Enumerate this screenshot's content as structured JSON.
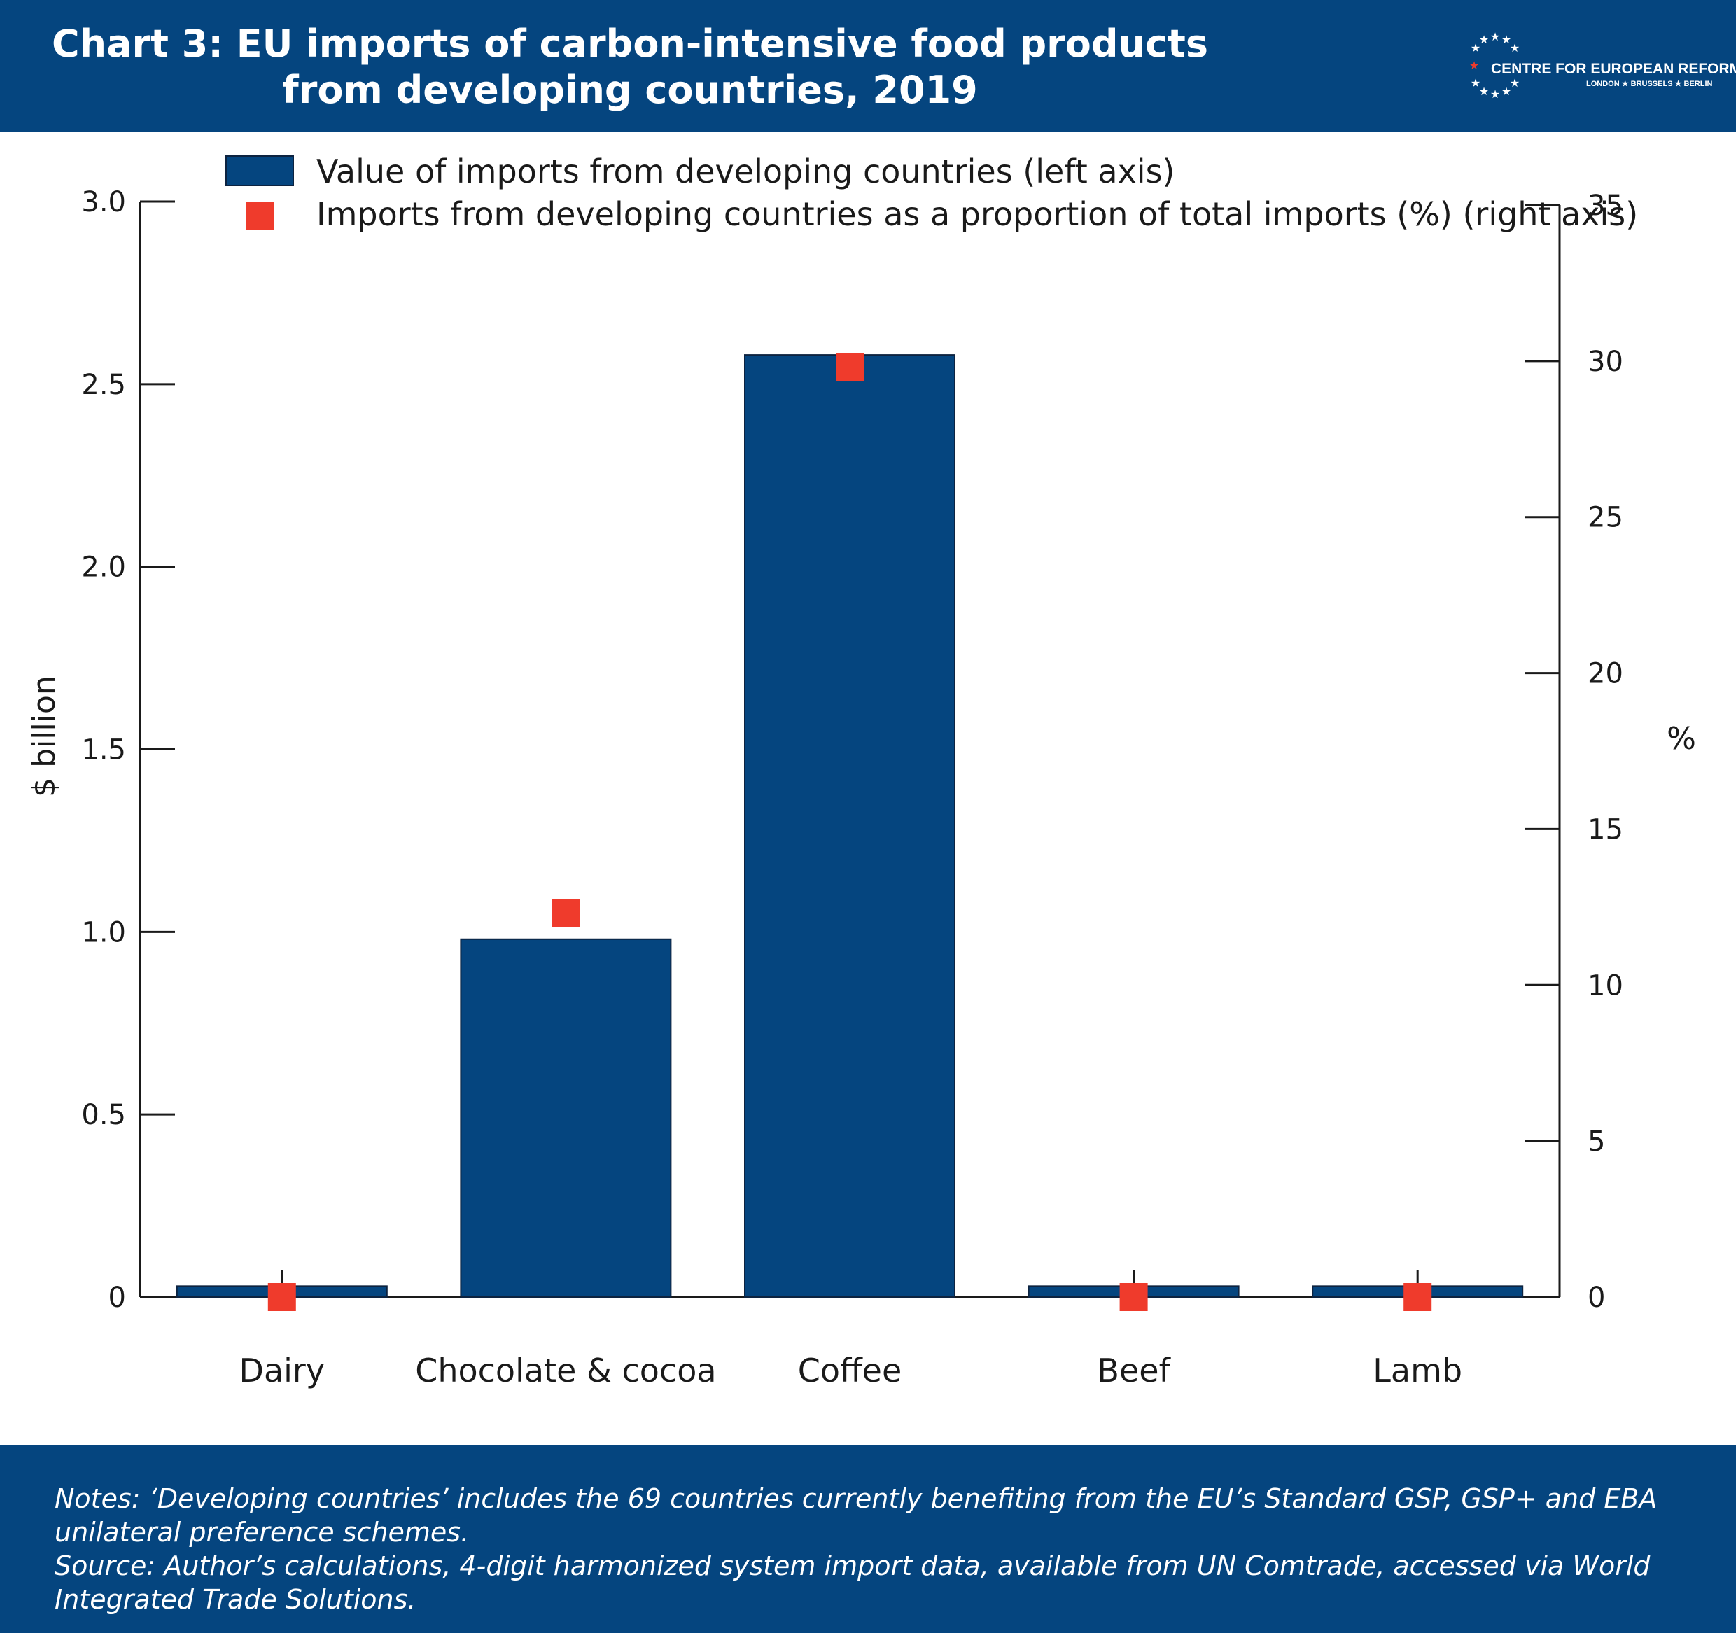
{
  "header": {
    "title_line1": "Chart 3: EU imports of carbon-intensive food products",
    "title_line2": "from developing countries, 2019",
    "logo_name": "CENTRE FOR EUROPEAN REFORM",
    "logo_sub": "LONDON ★ BRUSSELS ★ BERLIN"
  },
  "chart_data": {
    "type": "bar",
    "categories": [
      "Dairy",
      "Chocolate & cocoa",
      "Coffee",
      "Beef",
      "Lamb"
    ],
    "series": [
      {
        "name": "Value of imports from developing countries (left axis)",
        "kind": "bar",
        "axis": "left",
        "values": [
          0.03,
          0.98,
          2.58,
          0.03,
          0.03
        ],
        "color": "#05457f"
      },
      {
        "name": "Imports from developing countries as a proportion of total imports (%) (right axis)",
        "kind": "marker",
        "axis": "right",
        "values": [
          0,
          12.3,
          29.8,
          0,
          0
        ],
        "color": "#ef3b2c"
      }
    ],
    "ylabel": "$ billion",
    "ylim": [
      0,
      3.0
    ],
    "yticks": [
      "0",
      "0.5",
      "1.0",
      "1.5",
      "2.0",
      "2.5",
      "3.0"
    ],
    "y2label": "%",
    "y2lim": [
      0,
      35
    ],
    "y2ticks": [
      "0",
      "5",
      "10",
      "15",
      "20",
      "25",
      "30",
      "35"
    ],
    "legend_position": "top",
    "grid": false
  },
  "footer": {
    "notes": "Notes: ‘Developing countries’ includes the 69 countries currently benefiting from the EU’s Standard GSP, GSP+ and EBA unilateral preference schemes.",
    "source": "Source: Author’s calculations, 4-digit harmonized system import data, available from UN Comtrade, accessed via World Integrated Trade Solutions."
  },
  "colors": {
    "brand_blue": "#05457f",
    "marker_red": "#ef3b2c"
  }
}
